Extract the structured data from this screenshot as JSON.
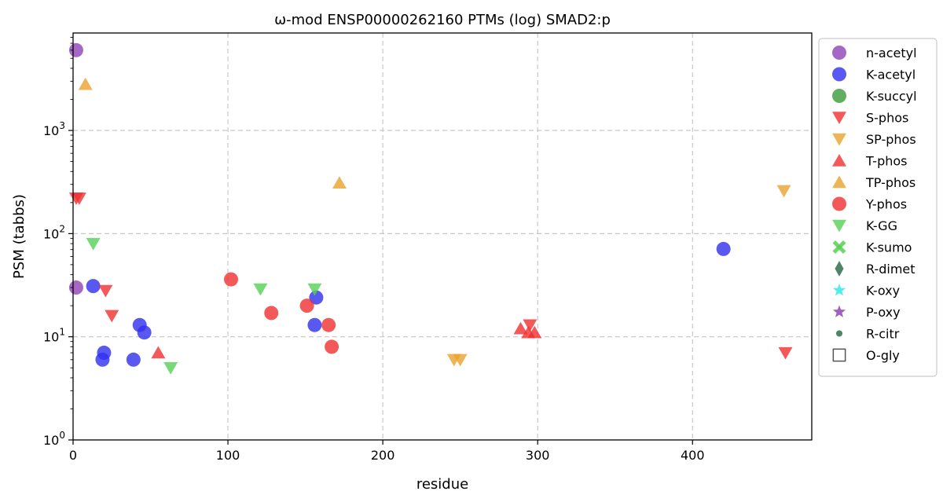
{
  "chart_data": {
    "type": "scatter",
    "title": "ω-mod ENSP00000262160 PTMs (log) SMAD2:p",
    "xlabel": "residue",
    "ylabel": "PSM (tabbs)",
    "xlim": [
      0,
      477
    ],
    "ylim": [
      1,
      8800
    ],
    "y_scale": "log",
    "grid": true,
    "legend_position": "right-outside-top",
    "x_ticks": [
      "0",
      "100",
      "200",
      "300",
      "400"
    ],
    "y_ticks": [
      {
        "value": 1,
        "base": "10",
        "exp": "0"
      },
      {
        "value": 10,
        "base": "10",
        "exp": "1"
      },
      {
        "value": 100,
        "base": "10",
        "exp": "2"
      },
      {
        "value": 1000,
        "base": "10",
        "exp": "3"
      }
    ],
    "series": [
      {
        "name": "n-acetyl",
        "marker": "circle",
        "color": "#8e44b5",
        "points": [
          [
            2,
            6000
          ],
          [
            2,
            30
          ]
        ]
      },
      {
        "name": "K-acetyl",
        "marker": "circle",
        "color": "#2f2fef",
        "points": [
          [
            13,
            31
          ],
          [
            19,
            6
          ],
          [
            20,
            7
          ],
          [
            39,
            6
          ],
          [
            43,
            13
          ],
          [
            46,
            11
          ],
          [
            156,
            13
          ],
          [
            157,
            24
          ],
          [
            420,
            71
          ]
        ]
      },
      {
        "name": "K-succyl",
        "marker": "circle",
        "color": "#3a9a3a",
        "points": []
      },
      {
        "name": "S-phos",
        "marker": "triangle-down",
        "color": "#f03030",
        "points": [
          [
            2,
            220
          ],
          [
            4,
            220
          ],
          [
            21,
            28
          ],
          [
            25,
            16
          ],
          [
            295,
            13
          ],
          [
            460,
            7
          ]
        ]
      },
      {
        "name": "SP-phos",
        "marker": "triangle-down",
        "color": "#eaa22e",
        "points": [
          [
            246,
            6
          ],
          [
            250,
            6
          ],
          [
            459,
            260
          ]
        ]
      },
      {
        "name": "T-phos",
        "marker": "triangle-up",
        "color": "#f03030",
        "points": [
          [
            55,
            7
          ],
          [
            289,
            12
          ],
          [
            294,
            11
          ],
          [
            298,
            11
          ]
        ]
      },
      {
        "name": "TP-phos",
        "marker": "triangle-up",
        "color": "#eaa22e",
        "points": [
          [
            8,
            2800
          ],
          [
            172,
            310
          ]
        ]
      },
      {
        "name": "Y-phos",
        "marker": "circle",
        "color": "#f03030",
        "points": [
          [
            102,
            36
          ],
          [
            128,
            17
          ],
          [
            151,
            20
          ],
          [
            165,
            13
          ],
          [
            167,
            8
          ]
        ]
      },
      {
        "name": "K-GG",
        "marker": "triangle-down",
        "color": "#55d055",
        "points": [
          [
            13,
            80
          ],
          [
            63,
            5
          ],
          [
            121,
            29
          ],
          [
            156,
            29
          ]
        ]
      },
      {
        "name": "K-sumo",
        "marker": "x",
        "color": "#55d055",
        "points": []
      },
      {
        "name": "R-dimet",
        "marker": "diamond",
        "color": "#2f6e4e",
        "points": []
      },
      {
        "name": "K-oxy",
        "marker": "star",
        "color": "#33eaea",
        "points": []
      },
      {
        "name": "P-oxy",
        "marker": "star",
        "color": "#8e44b5",
        "points": []
      },
      {
        "name": "R-citr",
        "marker": "small-circle",
        "color": "#2f6e4e",
        "points": []
      },
      {
        "name": "O-gly",
        "marker": "square-open",
        "color": "#555555",
        "points": []
      }
    ]
  }
}
